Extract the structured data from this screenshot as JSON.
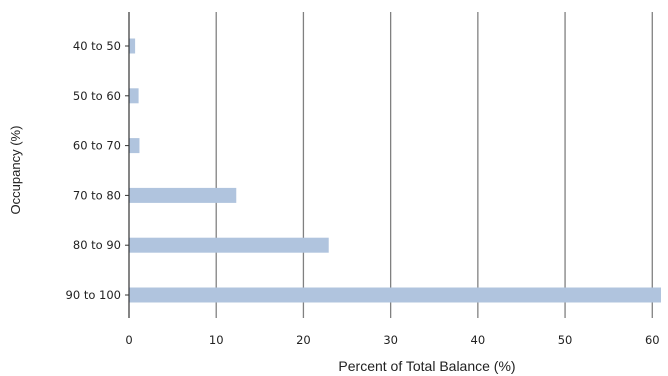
{
  "chart_data": {
    "type": "bar",
    "orientation": "horizontal",
    "categories": [
      "40 to 50",
      "50 to 60",
      "60 to 70",
      "70 to 80",
      "80 to 90",
      "90 to 100"
    ],
    "values": [
      0.7,
      1.1,
      1.2,
      12.3,
      22.9,
      61.0
    ],
    "xlabel": "Percent of Total Balance (%)",
    "ylabel": "Occupancy (%)",
    "xlim": [
      0,
      61
    ],
    "xticks": [
      "0",
      "10",
      "20",
      "30",
      "40",
      "50",
      "60"
    ],
    "grid": "vertical",
    "colors": {
      "bar": "#b0c4de",
      "grid": "#808080",
      "axis": "#333333"
    }
  }
}
